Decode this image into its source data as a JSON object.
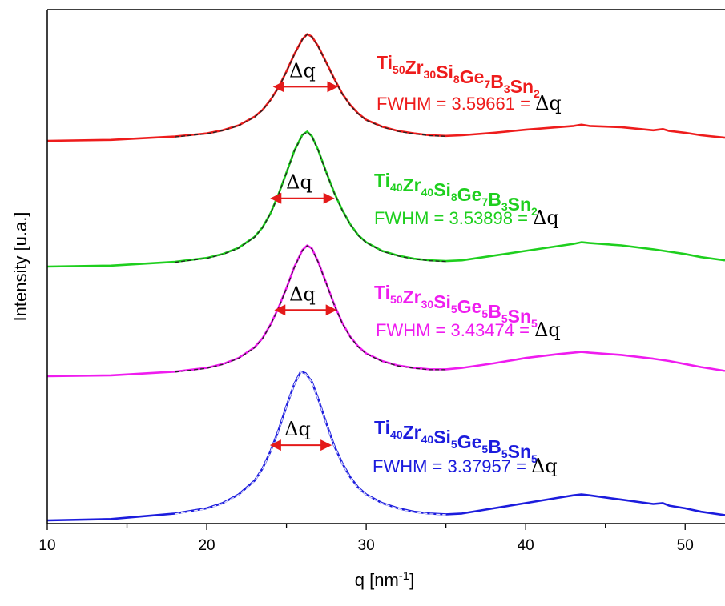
{
  "chart_data": {
    "type": "line",
    "title": "",
    "xlabel": "q [nm",
    "xlabel_sup": "-1",
    "xlabel_end": "]",
    "ylabel": "Intensity [u.a.]",
    "xlim": [
      10,
      52.5
    ],
    "xticks": [
      10,
      20,
      30,
      40,
      50
    ],
    "grid": false,
    "legend": "none",
    "colors": {
      "red": "#ee1c1c",
      "green": "#1ecf1e",
      "magenta": "#ef1cef",
      "blue": "#1c1cdd",
      "fit_line": "#222222",
      "arrow": "#e41a1a"
    },
    "series": [
      {
        "color": "#ee1c1c",
        "title_parts": [
          [
            "Ti",
            "50"
          ],
          [
            "Zr",
            "30"
          ],
          [
            "Si",
            "8"
          ],
          [
            "Ge",
            "7"
          ],
          [
            "B",
            "3"
          ],
          [
            "Sn",
            "2"
          ]
        ],
        "fwhm_text": "FWHM = 3.59661 = ",
        "delta_label": "Δq",
        "fwhm": 3.59661,
        "peak_q": 26.2,
        "q": [
          10,
          14,
          18,
          20,
          21,
          22,
          23,
          23.5,
          24,
          24.5,
          25,
          25.5,
          26,
          26.3,
          26.6,
          27,
          27.5,
          28,
          28.5,
          29,
          29.5,
          30,
          31,
          32,
          33,
          34,
          35,
          36,
          38,
          40,
          42,
          43,
          43.5,
          44,
          46,
          48,
          48.6,
          49,
          50,
          51,
          52.5
        ],
        "intensity": [
          0.0,
          0.008,
          0.035,
          0.06,
          0.085,
          0.125,
          0.195,
          0.25,
          0.33,
          0.43,
          0.56,
          0.7,
          0.82,
          0.86,
          0.84,
          0.76,
          0.63,
          0.5,
          0.38,
          0.29,
          0.22,
          0.17,
          0.115,
          0.08,
          0.06,
          0.045,
          0.04,
          0.045,
          0.065,
          0.09,
          0.11,
          0.12,
          0.13,
          0.12,
          0.11,
          0.085,
          0.095,
          0.08,
          0.065,
          0.045,
          0.025
        ]
      },
      {
        "color": "#1ecf1e",
        "title_parts": [
          [
            "Ti",
            "40"
          ],
          [
            "Zr",
            "40"
          ],
          [
            "Si",
            "8"
          ],
          [
            "Ge",
            "7"
          ],
          [
            "B",
            "3"
          ],
          [
            "Sn",
            "2"
          ]
        ],
        "fwhm_text": "FWHM = 3.53898 = ",
        "delta_label": "Δq",
        "fwhm": 3.53898,
        "peak_q": 26.0,
        "q": [
          10,
          14,
          18,
          20,
          21,
          22,
          23,
          23.5,
          24,
          24.5,
          25,
          25.5,
          26,
          26.3,
          26.6,
          27,
          27.5,
          28,
          28.5,
          29,
          29.5,
          30,
          31,
          32,
          33,
          34,
          35,
          36,
          38,
          40,
          42,
          43,
          43.5,
          44,
          46,
          48,
          49,
          50,
          51,
          52.5
        ],
        "intensity": [
          0.0,
          0.006,
          0.03,
          0.055,
          0.08,
          0.12,
          0.19,
          0.25,
          0.34,
          0.46,
          0.6,
          0.74,
          0.84,
          0.86,
          0.83,
          0.74,
          0.6,
          0.47,
          0.36,
          0.27,
          0.2,
          0.155,
          0.1,
          0.07,
          0.05,
          0.04,
          0.035,
          0.04,
          0.07,
          0.1,
          0.13,
          0.145,
          0.155,
          0.15,
          0.135,
          0.11,
          0.095,
          0.08,
          0.06,
          0.04
        ]
      },
      {
        "color": "#ef1cef",
        "title_parts": [
          [
            "Ti",
            "50"
          ],
          [
            "Zr",
            "30"
          ],
          [
            "Si",
            "5"
          ],
          [
            "Ge",
            "5"
          ],
          [
            "B",
            "5"
          ],
          [
            "Sn",
            "5"
          ]
        ],
        "fwhm_text": "FWHM = 3.43474 = ",
        "delta_label": "Δq",
        "fwhm": 3.43474,
        "peak_q": 26.2,
        "q": [
          10,
          14,
          18,
          20,
          21,
          22,
          23,
          23.5,
          24,
          24.5,
          25,
          25.5,
          26,
          26.3,
          26.6,
          27,
          27.5,
          28,
          28.5,
          29,
          29.5,
          30,
          31,
          32,
          33,
          34,
          35,
          36,
          38,
          40,
          42,
          43,
          43.5,
          44,
          46,
          48,
          49,
          50,
          51,
          52.5
        ],
        "intensity": [
          0.0,
          0.006,
          0.03,
          0.055,
          0.08,
          0.12,
          0.19,
          0.25,
          0.34,
          0.45,
          0.58,
          0.72,
          0.83,
          0.86,
          0.84,
          0.75,
          0.61,
          0.47,
          0.35,
          0.26,
          0.195,
          0.15,
          0.1,
          0.07,
          0.055,
          0.045,
          0.045,
          0.055,
          0.085,
          0.12,
          0.145,
          0.155,
          0.16,
          0.155,
          0.14,
          0.115,
          0.1,
          0.08,
          0.06,
          0.035
        ]
      },
      {
        "color": "#1c1cdd",
        "title_parts": [
          [
            "Ti",
            "40"
          ],
          [
            "Zr",
            "40"
          ],
          [
            "Si",
            "5"
          ],
          [
            "Ge",
            "5"
          ],
          [
            "B",
            "5"
          ],
          [
            "Sn",
            "5"
          ]
        ],
        "fwhm_text": "FWHM = 3.37957 = ",
        "delta_label": "Δq",
        "fwhm": 3.37957,
        "peak_q": 25.9,
        "q": [
          10,
          14,
          18,
          20,
          21,
          22,
          23,
          23.5,
          24,
          24.5,
          25,
          25.5,
          25.9,
          26.2,
          26.6,
          27,
          27.5,
          28,
          28.5,
          29,
          29.5,
          30,
          31,
          32,
          33,
          34,
          35,
          36,
          38,
          40,
          42,
          43,
          43.5,
          44,
          46,
          48,
          48.6,
          49,
          50,
          51,
          52.5
        ],
        "intensity": [
          0.0,
          0.008,
          0.04,
          0.07,
          0.1,
          0.15,
          0.23,
          0.3,
          0.4,
          0.52,
          0.66,
          0.79,
          0.86,
          0.85,
          0.8,
          0.7,
          0.56,
          0.43,
          0.33,
          0.25,
          0.19,
          0.15,
          0.1,
          0.07,
          0.05,
          0.04,
          0.035,
          0.04,
          0.07,
          0.1,
          0.13,
          0.145,
          0.15,
          0.145,
          0.12,
          0.095,
          0.1,
          0.085,
          0.07,
          0.05,
          0.03
        ]
      }
    ]
  }
}
